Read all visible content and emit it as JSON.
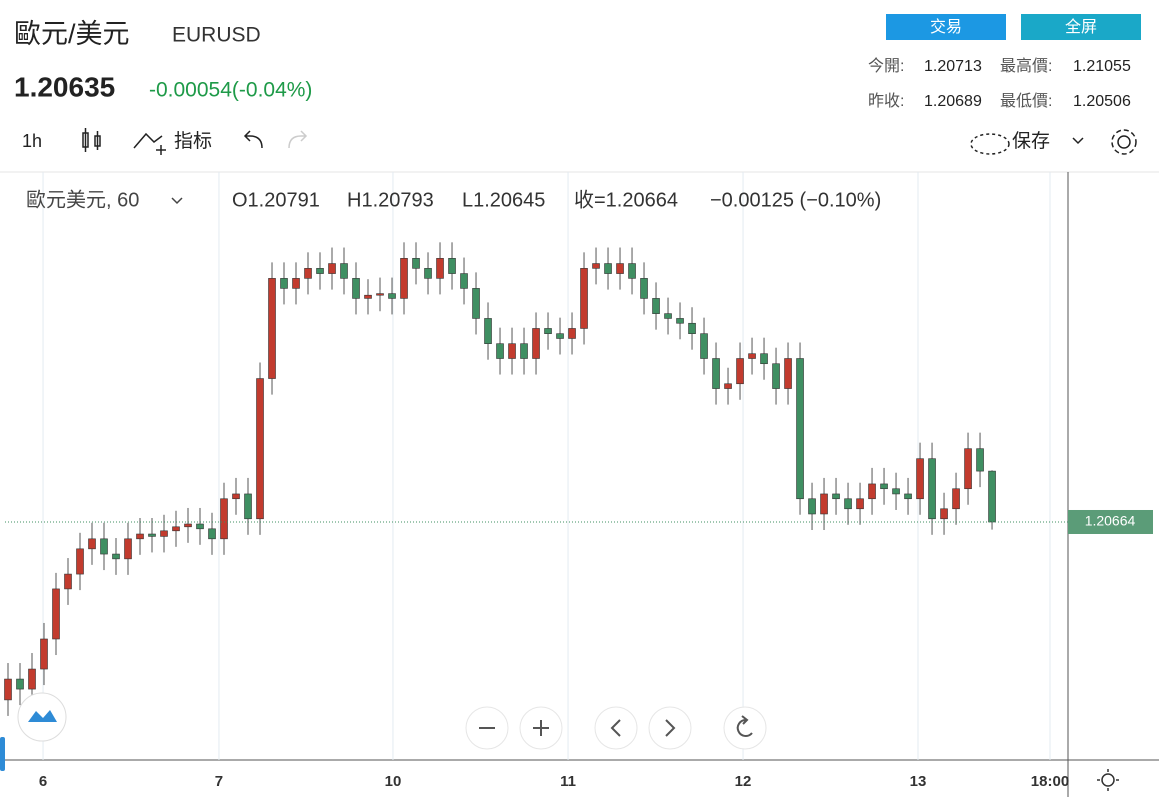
{
  "header": {
    "title": "歐元/美元",
    "symbol": "EURUSD",
    "price": "1.20635",
    "change": "-0.00054(-0.04%)",
    "buttons": [
      "交易",
      "全屏"
    ],
    "stats": [
      [
        "今開:",
        "1.20713",
        "最高價:",
        "1.21055"
      ],
      [
        "昨收:",
        "1.20689",
        "最低價:",
        "1.20506"
      ]
    ]
  },
  "toolbar": {
    "interval": "1h",
    "indicators": "指标",
    "save": "保存"
  },
  "chart_data": {
    "type": "candlestick",
    "title": "歐元美元, 60",
    "legend": [
      "O1.20791",
      "H1.20793",
      "L1.20645",
      "收=1.20664",
      "−0.00125 (−0.10%)"
    ],
    "up_color": "#c23b2e",
    "down_color": "#3f8f62",
    "ylim": [
      1.2007,
      1.2153
    ],
    "xlim": [
      -0.25,
      88.33
    ],
    "xticks": [
      {
        "value": 2.92,
        "label": "6"
      },
      {
        "value": 17.58,
        "label": "7"
      },
      {
        "value": 32.08,
        "label": "10"
      },
      {
        "value": 46.67,
        "label": "11"
      },
      {
        "value": 61.25,
        "label": "12"
      },
      {
        "value": 75.83,
        "label": "13"
      },
      {
        "value": 86.83,
        "label": "18:00"
      }
    ],
    "last_price": 1.20664,
    "open": [
      1.2022,
      1.20272,
      1.20247,
      1.20297,
      1.20372,
      1.20497,
      1.20534,
      1.20597,
      1.20622,
      1.20584,
      1.20572,
      1.20622,
      1.20634,
      1.20628,
      1.20642,
      1.20652,
      1.20659,
      1.20647,
      1.20622,
      1.20722,
      1.20734,
      1.20672,
      1.21022,
      1.21272,
      1.21247,
      1.21272,
      1.21297,
      1.21284,
      1.21309,
      1.21272,
      1.21222,
      1.2123,
      1.21234,
      1.21222,
      1.21322,
      1.21297,
      1.21272,
      1.21322,
      1.21284,
      1.21247,
      1.21172,
      1.21109,
      1.21072,
      1.21109,
      1.21072,
      1.21147,
      1.21134,
      1.21122,
      1.21147,
      1.21297,
      1.21309,
      1.21284,
      1.21309,
      1.21272,
      1.21222,
      1.21184,
      1.21172,
      1.2116,
      1.21134,
      1.21072,
      1.20997,
      1.21009,
      1.21072,
      1.21084,
      1.21059,
      1.20997,
      1.21072,
      1.20722,
      1.20684,
      1.20734,
      1.20722,
      1.20697,
      1.20722,
      1.20759,
      1.20747,
      1.20734,
      1.20722,
      1.20822,
      1.20672,
      1.20697,
      1.20747,
      1.20847,
      1.20791
    ],
    "high": [
      1.20312,
      1.20312,
      1.20337,
      1.20412,
      1.20537,
      1.20574,
      1.20637,
      1.20662,
      1.20662,
      1.20624,
      1.20662,
      1.20674,
      1.20674,
      1.20682,
      1.20692,
      1.20699,
      1.20699,
      1.20687,
      1.20762,
      1.20774,
      1.20774,
      1.21062,
      1.21312,
      1.21312,
      1.21312,
      1.21337,
      1.21337,
      1.21349,
      1.21349,
      1.21312,
      1.2127,
      1.21274,
      1.21274,
      1.21362,
      1.21362,
      1.21337,
      1.21362,
      1.21362,
      1.21324,
      1.21287,
      1.21212,
      1.21149,
      1.21149,
      1.21149,
      1.21187,
      1.21187,
      1.21174,
      1.21187,
      1.21337,
      1.21349,
      1.21349,
      1.21349,
      1.21349,
      1.21312,
      1.21262,
      1.21224,
      1.21212,
      1.212,
      1.21174,
      1.21112,
      1.21049,
      1.21112,
      1.21124,
      1.21124,
      1.21099,
      1.21112,
      1.21112,
      1.20762,
      1.20774,
      1.20774,
      1.20762,
      1.20762,
      1.20799,
      1.20799,
      1.20787,
      1.20774,
      1.20862,
      1.20862,
      1.20737,
      1.20787,
      1.20887,
      1.20887,
      1.20793
    ],
    "low": [
      1.2018,
      1.20207,
      1.20207,
      1.20257,
      1.20332,
      1.20457,
      1.20494,
      1.20557,
      1.20544,
      1.20532,
      1.20532,
      1.20582,
      1.20588,
      1.20588,
      1.20602,
      1.20612,
      1.20607,
      1.20582,
      1.20582,
      1.20682,
      1.20632,
      1.20632,
      1.20982,
      1.21207,
      1.21207,
      1.21232,
      1.21244,
      1.21244,
      1.21232,
      1.21182,
      1.21182,
      1.2119,
      1.21182,
      1.21182,
      1.21257,
      1.21232,
      1.21232,
      1.21244,
      1.21207,
      1.21132,
      1.21069,
      1.21032,
      1.21032,
      1.21032,
      1.21032,
      1.21094,
      1.21082,
      1.21082,
      1.21107,
      1.21257,
      1.21244,
      1.21244,
      1.21232,
      1.21182,
      1.21144,
      1.21132,
      1.2112,
      1.21094,
      1.21032,
      1.20957,
      1.20957,
      1.20969,
      1.21032,
      1.21019,
      1.20957,
      1.20957,
      1.20682,
      1.20644,
      1.20644,
      1.20682,
      1.20657,
      1.20657,
      1.20682,
      1.20707,
      1.20694,
      1.20682,
      1.20682,
      1.20632,
      1.20632,
      1.20657,
      1.20707,
      1.20751,
      1.20645
    ],
    "close": [
      1.20272,
      1.20247,
      1.20297,
      1.20372,
      1.20497,
      1.20534,
      1.20597,
      1.20622,
      1.20584,
      1.20572,
      1.20622,
      1.20634,
      1.20628,
      1.20642,
      1.20652,
      1.20659,
      1.20647,
      1.20622,
      1.20722,
      1.20734,
      1.20672,
      1.21022,
      1.21272,
      1.21247,
      1.21272,
      1.21297,
      1.21284,
      1.21309,
      1.21272,
      1.21222,
      1.2123,
      1.21234,
      1.21222,
      1.21322,
      1.21297,
      1.21272,
      1.21322,
      1.21284,
      1.21247,
      1.21172,
      1.21109,
      1.21072,
      1.21109,
      1.21072,
      1.21147,
      1.21134,
      1.21122,
      1.21147,
      1.21297,
      1.21309,
      1.21284,
      1.21309,
      1.21272,
      1.21222,
      1.21184,
      1.21172,
      1.2116,
      1.21134,
      1.21072,
      1.20997,
      1.21009,
      1.21072,
      1.21084,
      1.21059,
      1.20997,
      1.21072,
      1.20722,
      1.20684,
      1.20734,
      1.20722,
      1.20697,
      1.20722,
      1.20759,
      1.20747,
      1.20734,
      1.20722,
      1.20822,
      1.20672,
      1.20697,
      1.20747,
      1.20847,
      1.20791,
      1.20664
    ]
  }
}
